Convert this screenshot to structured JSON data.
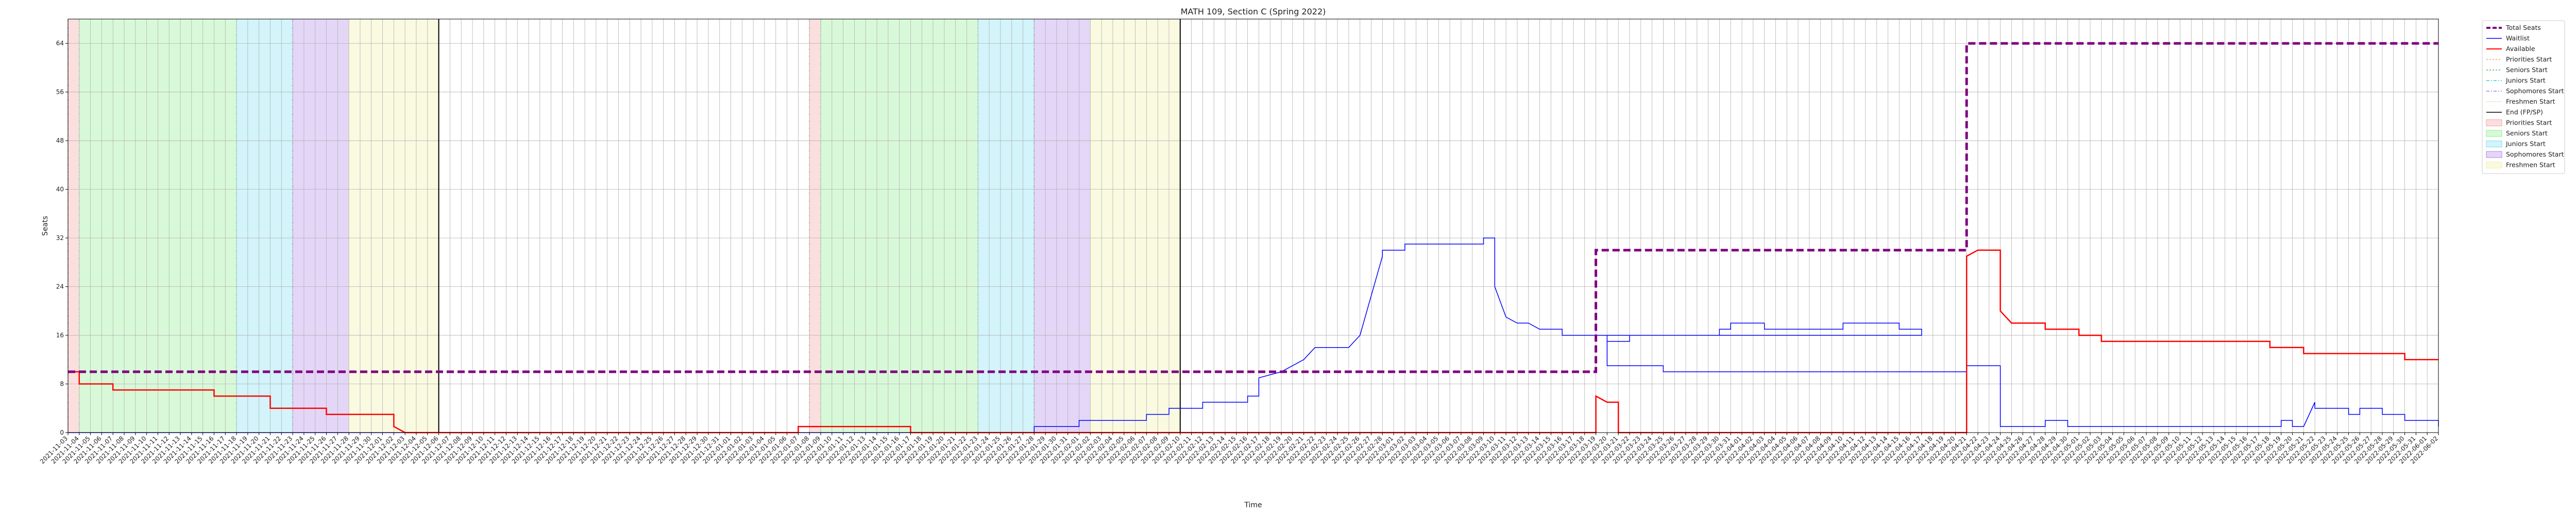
{
  "chart_data": {
    "type": "line",
    "title": "MATH 109, Section C (Spring 2022)",
    "xlabel": "Time",
    "ylabel": "Seats",
    "ylim": [
      0,
      68
    ],
    "yticks": [
      0,
      8,
      16,
      24,
      32,
      40,
      48,
      56,
      64
    ],
    "grid": true,
    "legend_position": "outside-right",
    "x_ticks": [
      "2021-11-03",
      "2021-11-04",
      "2021-11-05",
      "2021-11-06",
      "2021-11-07",
      "2021-11-08",
      "2021-11-09",
      "2021-11-10",
      "2021-11-11",
      "2021-11-12",
      "2021-11-13",
      "2021-11-14",
      "2021-11-15",
      "2021-11-16",
      "2021-11-17",
      "2021-11-18",
      "2021-11-19",
      "2021-11-20",
      "2021-11-21",
      "2021-11-22",
      "2021-11-23",
      "2021-11-24",
      "2021-11-25",
      "2021-11-26",
      "2021-11-27",
      "2021-11-28",
      "2021-11-29",
      "2021-11-30",
      "2021-12-01",
      "2021-12-02",
      "2021-12-03",
      "2021-12-04",
      "2021-12-05",
      "2021-12-06",
      "2021-12-07",
      "2021-12-08",
      "2021-12-09",
      "2021-12-10",
      "2021-12-11",
      "2021-12-12",
      "2021-12-13",
      "2021-12-14",
      "2021-12-15",
      "2021-12-16",
      "2021-12-17",
      "2021-12-18",
      "2021-12-19",
      "2021-12-20",
      "2021-12-21",
      "2021-12-22",
      "2021-12-23",
      "2021-12-24",
      "2021-12-25",
      "2021-12-26",
      "2021-12-27",
      "2021-12-28",
      "2021-12-29",
      "2021-12-30",
      "2021-12-31",
      "2022-01-01",
      "2022-01-02",
      "2022-01-03",
      "2022-01-04",
      "2022-01-05",
      "2022-01-06",
      "2022-01-07",
      "2022-01-08",
      "2022-01-09",
      "2022-01-10",
      "2022-01-11",
      "2022-01-12",
      "2022-01-13",
      "2022-01-14",
      "2022-01-15",
      "2022-01-16",
      "2022-01-17",
      "2022-01-18",
      "2022-01-19",
      "2022-01-20",
      "2022-01-21",
      "2022-01-22",
      "2022-01-23",
      "2022-01-24",
      "2022-01-25",
      "2022-01-26",
      "2022-01-27",
      "2022-01-28",
      "2022-01-29",
      "2022-01-30",
      "2022-01-31",
      "2022-02-01",
      "2022-02-02",
      "2022-02-03",
      "2022-02-04",
      "2022-02-05",
      "2022-02-06",
      "2022-02-07",
      "2022-02-08",
      "2022-02-09",
      "2022-02-10",
      "2022-02-11",
      "2022-02-12",
      "2022-02-13",
      "2022-02-14",
      "2022-02-15",
      "2022-02-16",
      "2022-02-17",
      "2022-02-18",
      "2022-02-19",
      "2022-02-20",
      "2022-02-21",
      "2022-02-22",
      "2022-02-23",
      "2022-02-24",
      "2022-02-25",
      "2022-02-26",
      "2022-02-27",
      "2022-02-28",
      "2022-03-01",
      "2022-03-02",
      "2022-03-03",
      "2022-03-04",
      "2022-03-05",
      "2022-03-06",
      "2022-03-07",
      "2022-03-08",
      "2022-03-09",
      "2022-03-10",
      "2022-03-11",
      "2022-03-12",
      "2022-03-13",
      "2022-03-14",
      "2022-03-15",
      "2022-03-16",
      "2022-03-17",
      "2022-03-18",
      "2022-03-19",
      "2022-03-20",
      "2022-03-21",
      "2022-03-22",
      "2022-03-23",
      "2022-03-24",
      "2022-03-25",
      "2022-03-26",
      "2022-03-27",
      "2022-03-28",
      "2022-03-29",
      "2022-03-30",
      "2022-03-31",
      "2022-04-01",
      "2022-04-02",
      "2022-04-03",
      "2022-04-04",
      "2022-04-05",
      "2022-04-06",
      "2022-04-07",
      "2022-04-08",
      "2022-04-09",
      "2022-04-10",
      "2022-04-11",
      "2022-04-12",
      "2022-04-13",
      "2022-04-14",
      "2022-04-15",
      "2022-04-16",
      "2022-04-17",
      "2022-04-18",
      "2022-04-19",
      "2022-04-20",
      "2022-04-21",
      "2022-04-22",
      "2022-04-23",
      "2022-04-24",
      "2022-04-25",
      "2022-04-26",
      "2022-04-27",
      "2022-04-28",
      "2022-04-29",
      "2022-04-30",
      "2022-05-01",
      "2022-05-02",
      "2022-05-03",
      "2022-05-04",
      "2022-05-05",
      "2022-05-06",
      "2022-05-07",
      "2022-05-08",
      "2022-05-09",
      "2022-05-10",
      "2022-05-11",
      "2022-05-12",
      "2022-05-13",
      "2022-05-14",
      "2022-05-15",
      "2022-05-16",
      "2022-05-17",
      "2022-05-18",
      "2022-05-19",
      "2022-05-20",
      "2022-05-21",
      "2022-05-22",
      "2022-05-23",
      "2022-05-24",
      "2022-05-25",
      "2022-05-26",
      "2022-05-27",
      "2022-05-28",
      "2022-05-29",
      "2022-05-30",
      "2022-05-31",
      "2022-06-01",
      "2022-06-02"
    ],
    "x_range": [
      "2021-11-03",
      "2022-06-02"
    ],
    "series": [
      {
        "name": "Total Seats",
        "color": "#800080",
        "style": "dashed-thick",
        "points": [
          [
            "2021-11-03",
            10
          ],
          [
            "2022-03-19",
            10
          ],
          [
            "2022-03-19",
            30
          ],
          [
            "2022-04-21",
            30
          ],
          [
            "2022-04-21",
            64
          ],
          [
            "2022-06-02",
            64
          ]
        ]
      },
      {
        "name": "Waitlist",
        "color": "#0000ff",
        "style": "solid-thin",
        "points": [
          [
            "2021-11-03",
            0
          ],
          [
            "2022-01-28",
            0
          ],
          [
            "2022-01-28",
            1
          ],
          [
            "2022-02-01",
            1
          ],
          [
            "2022-02-01",
            2
          ],
          [
            "2022-02-07",
            2
          ],
          [
            "2022-02-07",
            3
          ],
          [
            "2022-02-09",
            3
          ],
          [
            "2022-02-09",
            4
          ],
          [
            "2022-02-12",
            4
          ],
          [
            "2022-02-12",
            5
          ],
          [
            "2022-02-16",
            5
          ],
          [
            "2022-02-16",
            6
          ],
          [
            "2022-02-17",
            6
          ],
          [
            "2022-02-17",
            9
          ],
          [
            "2022-02-19",
            10
          ],
          [
            "2022-02-21",
            12
          ],
          [
            "2022-02-22",
            14
          ],
          [
            "2022-02-25",
            14
          ],
          [
            "2022-02-26",
            16
          ],
          [
            "2022-02-28",
            29
          ],
          [
            "2022-02-28",
            30
          ],
          [
            "2022-03-02",
            30
          ],
          [
            "2022-03-02",
            31
          ],
          [
            "2022-03-05",
            31
          ],
          [
            "2022-03-09",
            31
          ],
          [
            "2022-03-09",
            32
          ],
          [
            "2022-03-10",
            32
          ],
          [
            "2022-03-10",
            24
          ],
          [
            "2022-03-11",
            19
          ],
          [
            "2022-03-12",
            18
          ],
          [
            "2022-03-13",
            18
          ],
          [
            "2022-03-14",
            17
          ],
          [
            "2022-03-16",
            17
          ],
          [
            "2022-03-16",
            16
          ],
          [
            "2022-03-20",
            16
          ],
          [
            "2022-03-20",
            15
          ],
          [
            "2022-03-22",
            15
          ],
          [
            "2022-03-22",
            16
          ],
          [
            "2022-03-30",
            16
          ],
          [
            "2022-03-30",
            17
          ],
          [
            "2022-03-31",
            17
          ],
          [
            "2022-03-31",
            18
          ],
          [
            "2022-04-03",
            18
          ],
          [
            "2022-04-03",
            17
          ],
          [
            "2022-04-10",
            17
          ],
          [
            "2022-04-10",
            18
          ],
          [
            "2022-04-15",
            18
          ],
          [
            "2022-04-15",
            17
          ],
          [
            "2022-04-17",
            17
          ],
          [
            "2022-04-17",
            16
          ],
          [
            "2022-03-19",
            16
          ],
          [
            "2022-03-19",
            16
          ],
          [
            "2022-03-20",
            16
          ],
          [
            "2022-03-20",
            11
          ],
          [
            "2022-03-25",
            11
          ],
          [
            "2022-03-25",
            10
          ],
          [
            "2022-04-21",
            10
          ],
          [
            "2022-04-21",
            11
          ],
          [
            "2022-04-24",
            11
          ],
          [
            "2022-04-24",
            1
          ],
          [
            "2022-04-28",
            1
          ],
          [
            "2022-04-28",
            2
          ],
          [
            "2022-04-30",
            2
          ],
          [
            "2022-04-30",
            1
          ],
          [
            "2022-05-19",
            1
          ],
          [
            "2022-05-19",
            2
          ],
          [
            "2022-05-20",
            2
          ],
          [
            "2022-05-20",
            1
          ],
          [
            "2022-05-21",
            1
          ],
          [
            "2022-05-22",
            5
          ],
          [
            "2022-05-22",
            4
          ],
          [
            "2022-05-25",
            4
          ],
          [
            "2022-05-25",
            3
          ],
          [
            "2022-05-26",
            3
          ],
          [
            "2022-05-26",
            4
          ],
          [
            "2022-05-28",
            4
          ],
          [
            "2022-05-28",
            3
          ],
          [
            "2022-05-30",
            3
          ],
          [
            "2022-05-30",
            2
          ],
          [
            "2022-06-02",
            2
          ],
          [
            "2022-06-02",
            1
          ]
        ]
      },
      {
        "name": "Available",
        "color": "#ff0000",
        "style": "solid",
        "points": [
          [
            "2021-11-03",
            10
          ],
          [
            "2021-11-04",
            10
          ],
          [
            "2021-11-04",
            8
          ],
          [
            "2021-11-07",
            8
          ],
          [
            "2021-11-07",
            7
          ],
          [
            "2021-11-16",
            7
          ],
          [
            "2021-11-16",
            6
          ],
          [
            "2021-11-21",
            6
          ],
          [
            "2021-11-21",
            4
          ],
          [
            "2021-11-26",
            4
          ],
          [
            "2021-11-26",
            3
          ],
          [
            "2021-12-02",
            3
          ],
          [
            "2021-12-02",
            1
          ],
          [
            "2021-12-03",
            0
          ],
          [
            "2022-01-07",
            0
          ],
          [
            "2022-01-07",
            1
          ],
          [
            "2022-01-17",
            1
          ],
          [
            "2022-01-17",
            0
          ],
          [
            "2022-03-19",
            0
          ],
          [
            "2022-03-19",
            6
          ],
          [
            "2022-03-20",
            5
          ],
          [
            "2022-03-21",
            5
          ],
          [
            "2022-03-21",
            0
          ],
          [
            "2022-04-21",
            0
          ],
          [
            "2022-04-21",
            29
          ],
          [
            "2022-04-22",
            30
          ],
          [
            "2022-04-24",
            30
          ],
          [
            "2022-04-24",
            20
          ],
          [
            "2022-04-25",
            18
          ],
          [
            "2022-04-28",
            18
          ],
          [
            "2022-04-28",
            17
          ],
          [
            "2022-05-01",
            17
          ],
          [
            "2022-05-01",
            16
          ],
          [
            "2022-05-03",
            16
          ],
          [
            "2022-05-03",
            15
          ],
          [
            "2022-05-18",
            15
          ],
          [
            "2022-05-18",
            14
          ],
          [
            "2022-05-21",
            14
          ],
          [
            "2022-05-21",
            13
          ],
          [
            "2022-05-30",
            13
          ],
          [
            "2022-05-30",
            12
          ],
          [
            "2022-06-02",
            12
          ]
        ]
      }
    ],
    "shaded_periods": [
      {
        "name": "Priorities Start",
        "color": "#f4a3a3",
        "start": "2021-11-03",
        "end": "2021-11-04"
      },
      {
        "name": "Seniors Start",
        "color": "#90ee90",
        "start": "2021-11-04",
        "end": "2021-11-18"
      },
      {
        "name": "Juniors Start",
        "color": "#7fe0f0",
        "start": "2021-11-18",
        "end": "2021-11-23"
      },
      {
        "name": "Sophomores Start",
        "color": "#b28ae8",
        "start": "2021-11-23",
        "end": "2021-11-28"
      },
      {
        "name": "Freshmen Start",
        "color": "#f2f2a8",
        "start": "2021-11-28",
        "end": "2021-12-06"
      },
      {
        "name": "Priorities Start",
        "color": "#f4a3a3",
        "start": "2022-01-08",
        "end": "2022-01-09"
      },
      {
        "name": "Seniors Start",
        "color": "#90ee90",
        "start": "2022-01-09",
        "end": "2022-01-23"
      },
      {
        "name": "Juniors Start",
        "color": "#7fe0f0",
        "start": "2022-01-23",
        "end": "2022-01-28"
      },
      {
        "name": "Sophomores Start",
        "color": "#b28ae8",
        "start": "2022-01-28",
        "end": "2022-02-02"
      },
      {
        "name": "Freshmen Start",
        "color": "#f2f2a8",
        "start": "2022-02-02",
        "end": "2022-02-10"
      }
    ],
    "vertical_markers": [
      {
        "name": "End (FP/SP)",
        "color": "#000000",
        "x": "2021-12-06"
      },
      {
        "name": "End (FP/SP)",
        "color": "#000000",
        "x": "2022-02-10"
      }
    ],
    "legend": [
      {
        "label": "Total Seats",
        "kind": "line",
        "color": "#800080",
        "dash": "8,4",
        "width": 4
      },
      {
        "label": "Waitlist",
        "kind": "line",
        "color": "#0000ff",
        "dash": "",
        "width": 1.5
      },
      {
        "label": "Available",
        "kind": "line",
        "color": "#ff0000",
        "dash": "",
        "width": 2
      },
      {
        "label": "Priorities Start",
        "kind": "line",
        "color": "#ff8c69",
        "dash": "3,3",
        "width": 1.2
      },
      {
        "label": "Seniors Start",
        "kind": "line",
        "color": "#2ca02c",
        "dash": "3,3",
        "width": 1.2
      },
      {
        "label": "Juniors Start",
        "kind": "line",
        "color": "#17becf",
        "dash": "6,3,2,3",
        "width": 1.2
      },
      {
        "label": "Sophomores Start",
        "kind": "line",
        "color": "#9467bd",
        "dash": "6,3,2,3",
        "width": 1.2
      },
      {
        "label": "Freshmen Start",
        "kind": "line",
        "color": "#d4d48a",
        "dash": "2,2",
        "width": 1.2
      },
      {
        "label": "End (FP/SP)",
        "kind": "line",
        "color": "#000000",
        "dash": "",
        "width": 1.5
      },
      {
        "label": "Priorities Start",
        "kind": "patch",
        "color": "#f4a3a3"
      },
      {
        "label": "Seniors Start",
        "kind": "patch",
        "color": "#90ee90"
      },
      {
        "label": "Juniors Start",
        "kind": "patch",
        "color": "#7fe0f0"
      },
      {
        "label": "Sophomores Start",
        "kind": "patch",
        "color": "#b28ae8"
      },
      {
        "label": "Freshmen Start",
        "kind": "patch",
        "color": "#f2f2a8"
      }
    ]
  }
}
